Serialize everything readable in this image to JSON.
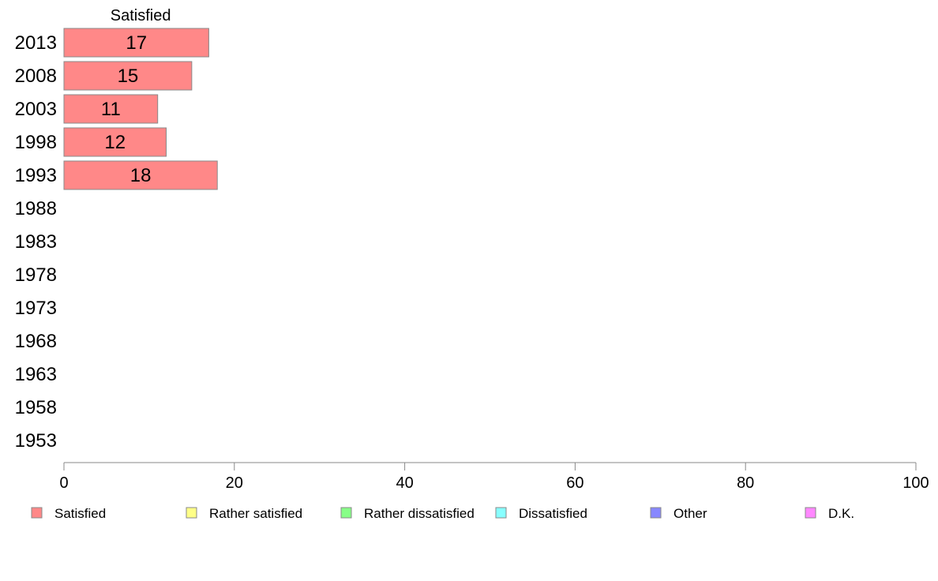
{
  "chart_data": {
    "type": "bar",
    "orientation": "horizontal",
    "stacked": true,
    "categories": [
      "2013",
      "2008",
      "2003",
      "1998",
      "1993",
      "1988",
      "1983",
      "1978",
      "1973",
      "1968",
      "1963",
      "1958",
      "1953"
    ],
    "series": [
      {
        "name": "Satisfied",
        "color": "#ff8888",
        "values": [
          17,
          15,
          11,
          12,
          18,
          null,
          null,
          null,
          null,
          null,
          null,
          null,
          null
        ]
      },
      {
        "name": "Rather satisfied",
        "color": "#ffff88",
        "values": [
          null,
          null,
          null,
          null,
          null,
          null,
          null,
          null,
          null,
          null,
          null,
          null,
          null
        ]
      },
      {
        "name": "Rather dissatisfied",
        "color": "#88ff88",
        "values": [
          null,
          null,
          null,
          null,
          null,
          null,
          null,
          null,
          null,
          null,
          null,
          null,
          null
        ]
      },
      {
        "name": "Dissatisfied",
        "color": "#88ffff",
        "values": [
          null,
          null,
          null,
          null,
          null,
          null,
          null,
          null,
          null,
          null,
          null,
          null,
          null
        ]
      },
      {
        "name": "Other",
        "color": "#8888ff",
        "values": [
          null,
          null,
          null,
          null,
          null,
          null,
          null,
          null,
          null,
          null,
          null,
          null,
          null
        ]
      },
      {
        "name": "D.K.",
        "color": "#ff88ff",
        "values": [
          null,
          null,
          null,
          null,
          null,
          null,
          null,
          null,
          null,
          null,
          null,
          null,
          null
        ]
      }
    ],
    "column_header": "Satisfied",
    "xlim": [
      0,
      100
    ],
    "xticks": [
      0,
      20,
      40,
      60,
      80,
      100
    ],
    "grid": false,
    "legend_position": "bottom"
  }
}
